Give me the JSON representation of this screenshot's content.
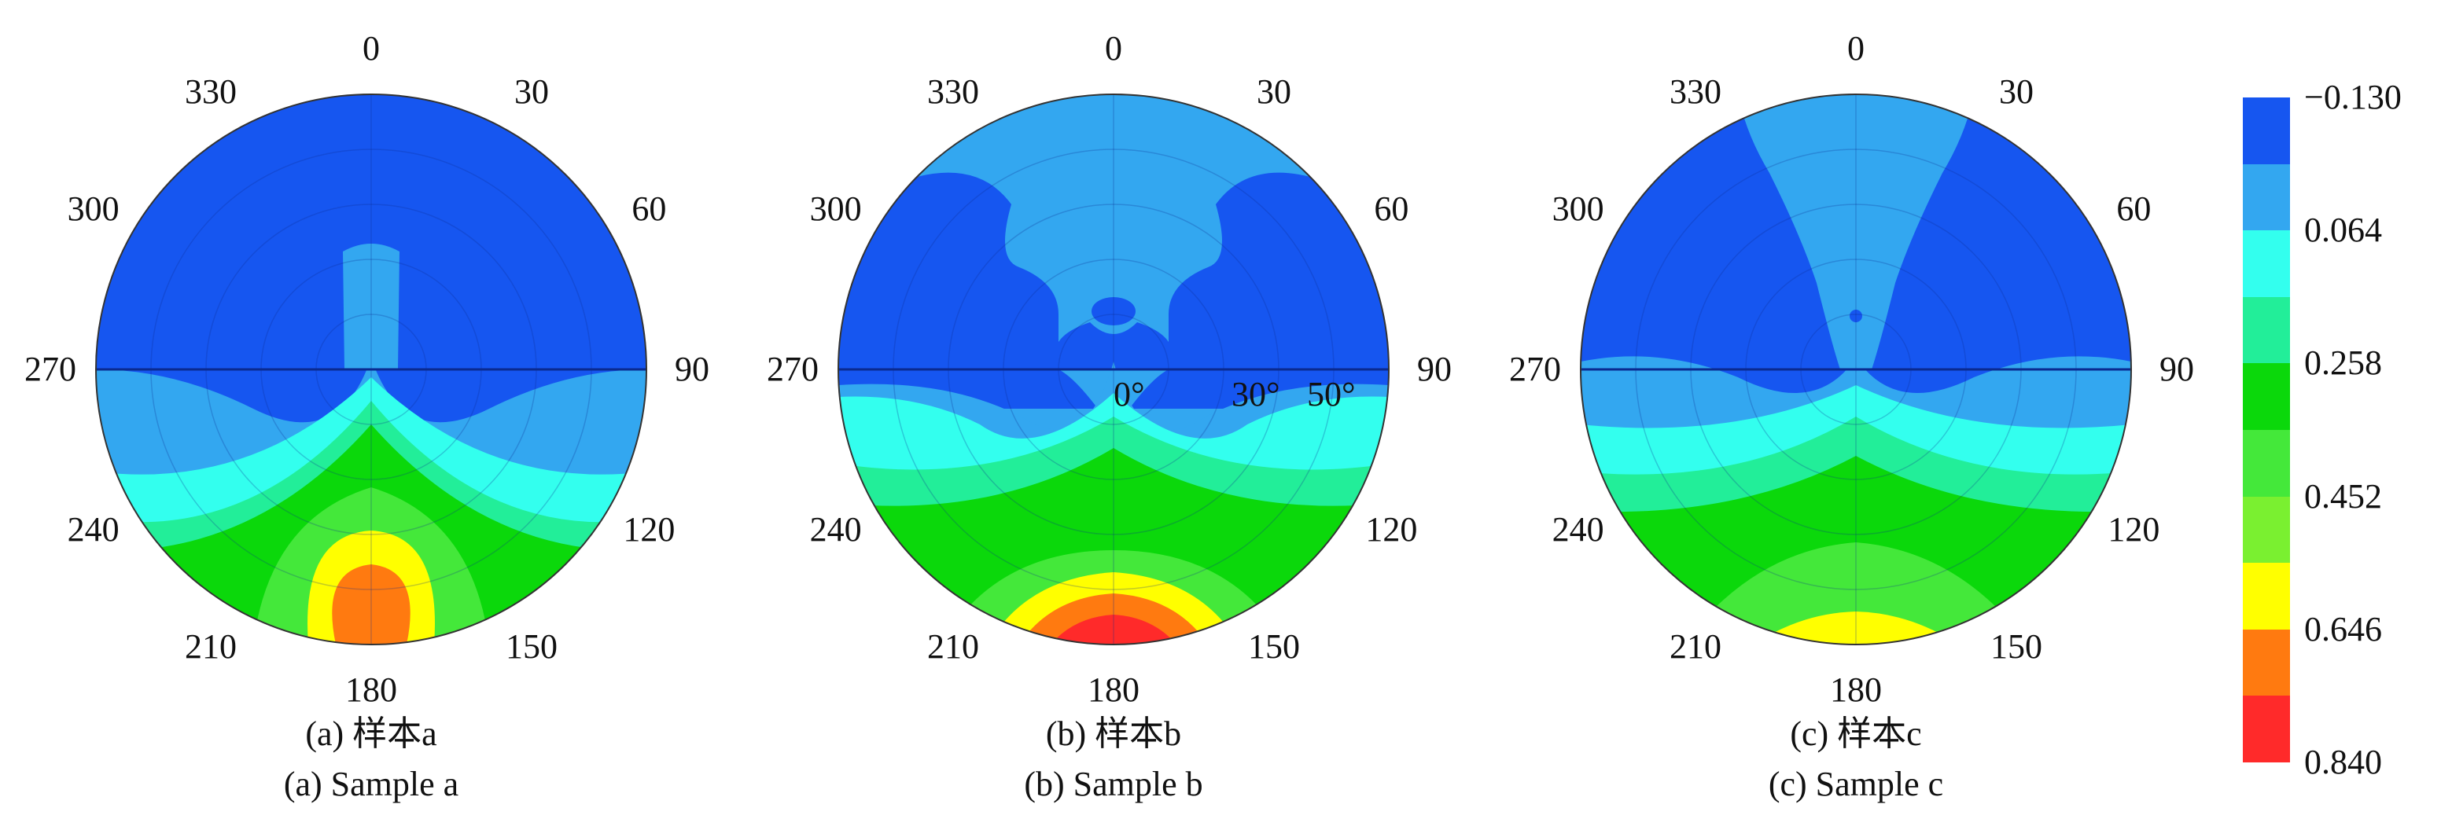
{
  "chart_data": {
    "type": "polar-contour",
    "angular_ticks": [
      "0",
      "30",
      "60",
      "90",
      "120",
      "150",
      "180",
      "210",
      "240",
      "270",
      "300",
      "330"
    ],
    "colorbar": {
      "ticks": [
        "−0.130",
        "0.064",
        "0.258",
        "0.452",
        "0.646",
        "0.840"
      ],
      "range": [
        -0.13,
        0.84
      ],
      "levels": [
        {
          "from": 0.84,
          "to": 0.743,
          "color": "#ff2a2a"
        },
        {
          "from": 0.743,
          "to": 0.646,
          "color": "#ff7a10"
        },
        {
          "from": 0.646,
          "to": 0.549,
          "color": "#ffff00"
        },
        {
          "from": 0.549,
          "to": 0.452,
          "color": "#7af030"
        },
        {
          "from": 0.452,
          "to": 0.355,
          "color": "#44e83a"
        },
        {
          "from": 0.355,
          "to": 0.258,
          "color": "#0bd80b"
        },
        {
          "from": 0.258,
          "to": 0.161,
          "color": "#22ee99"
        },
        {
          "from": 0.161,
          "to": 0.064,
          "color": "#33ffee"
        },
        {
          "from": 0.064,
          "to": -0.033,
          "color": "#33a7f0"
        },
        {
          "from": -0.033,
          "to": -0.13,
          "color": "#1656f0"
        }
      ]
    },
    "panels": [
      {
        "id": "a",
        "caption_cn": "(a) 样本a",
        "caption_en": "(a) Sample a",
        "max_level": 0.743
      },
      {
        "id": "b",
        "caption_cn": "(b) 样本b",
        "caption_en": "(b) Sample b",
        "max_level": 0.84,
        "annotations": [
          "0°",
          "30°",
          "50°"
        ]
      },
      {
        "id": "c",
        "caption_cn": "(c) 样本c",
        "caption_en": "(c) Sample c",
        "max_level": 0.646
      }
    ]
  }
}
